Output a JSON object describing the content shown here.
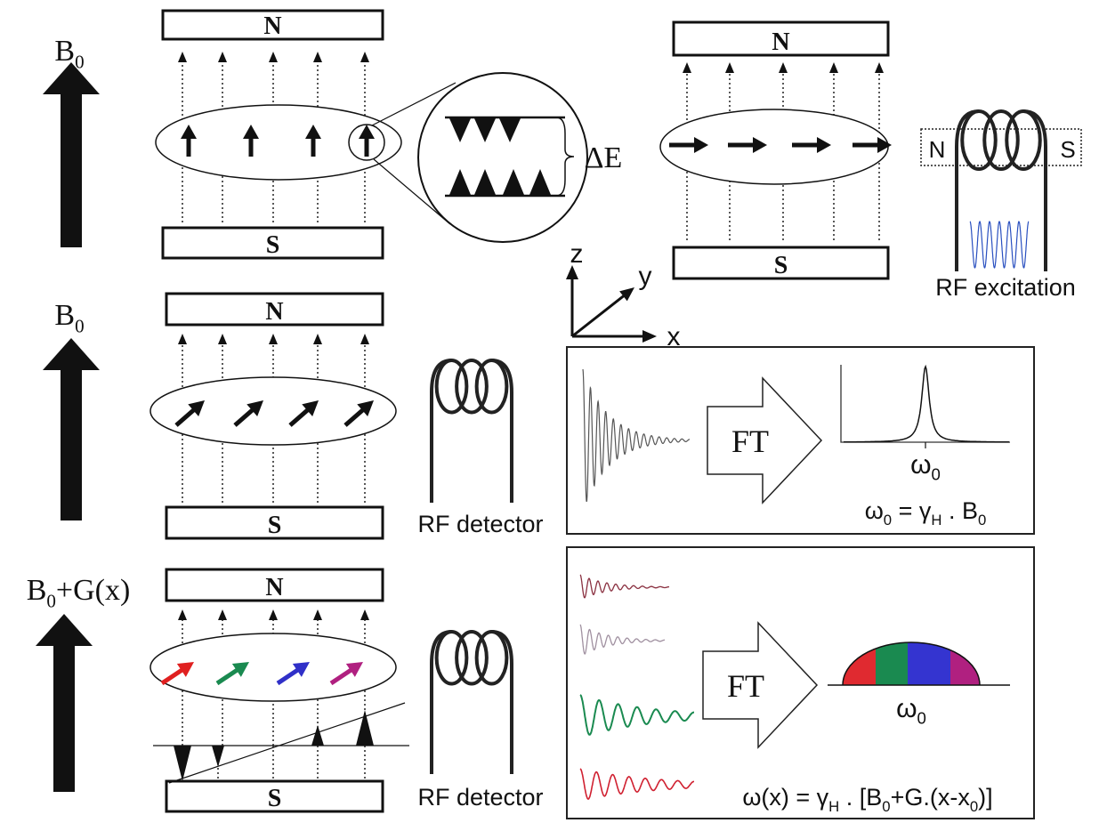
{
  "magnets": {
    "north": "N",
    "south": "S"
  },
  "equilibrium": {
    "field_label": [
      {
        "text": "B"
      },
      {
        "sub": "0"
      }
    ],
    "energy_gap": "ΔE"
  },
  "excitation": {
    "coil_north": "N",
    "coil_south": "S",
    "caption": "RF excitation"
  },
  "axes": {
    "z": "z",
    "y": "y",
    "x": "x"
  },
  "precession": {
    "field_label": [
      {
        "text": "B"
      },
      {
        "sub": "0"
      }
    ],
    "detector": "RF detector",
    "transform": "FT",
    "peak_label": [
      {
        "text": "ω"
      },
      {
        "sub": "0"
      }
    ],
    "equation": [
      {
        "text": "ω"
      },
      {
        "sub": "0"
      },
      {
        "text": " = γ"
      },
      {
        "sub": "H"
      },
      {
        "text": " . B"
      },
      {
        "sub": "0"
      }
    ]
  },
  "gradient": {
    "field_label": [
      {
        "text": "B"
      },
      {
        "sub": "0"
      },
      {
        "text": "+G(x)"
      }
    ],
    "detector": "RF detector",
    "transform": "FT",
    "peak_label": [
      {
        "text": "ω"
      },
      {
        "sub": "0"
      }
    ],
    "equation": [
      {
        "text": "ω(x) = γ"
      },
      {
        "sub": "H"
      },
      {
        "text": " . [B"
      },
      {
        "sub": "0"
      },
      {
        "text": "+G.(x-x"
      },
      {
        "sub": "0"
      },
      {
        "text": ")]"
      }
    ]
  }
}
